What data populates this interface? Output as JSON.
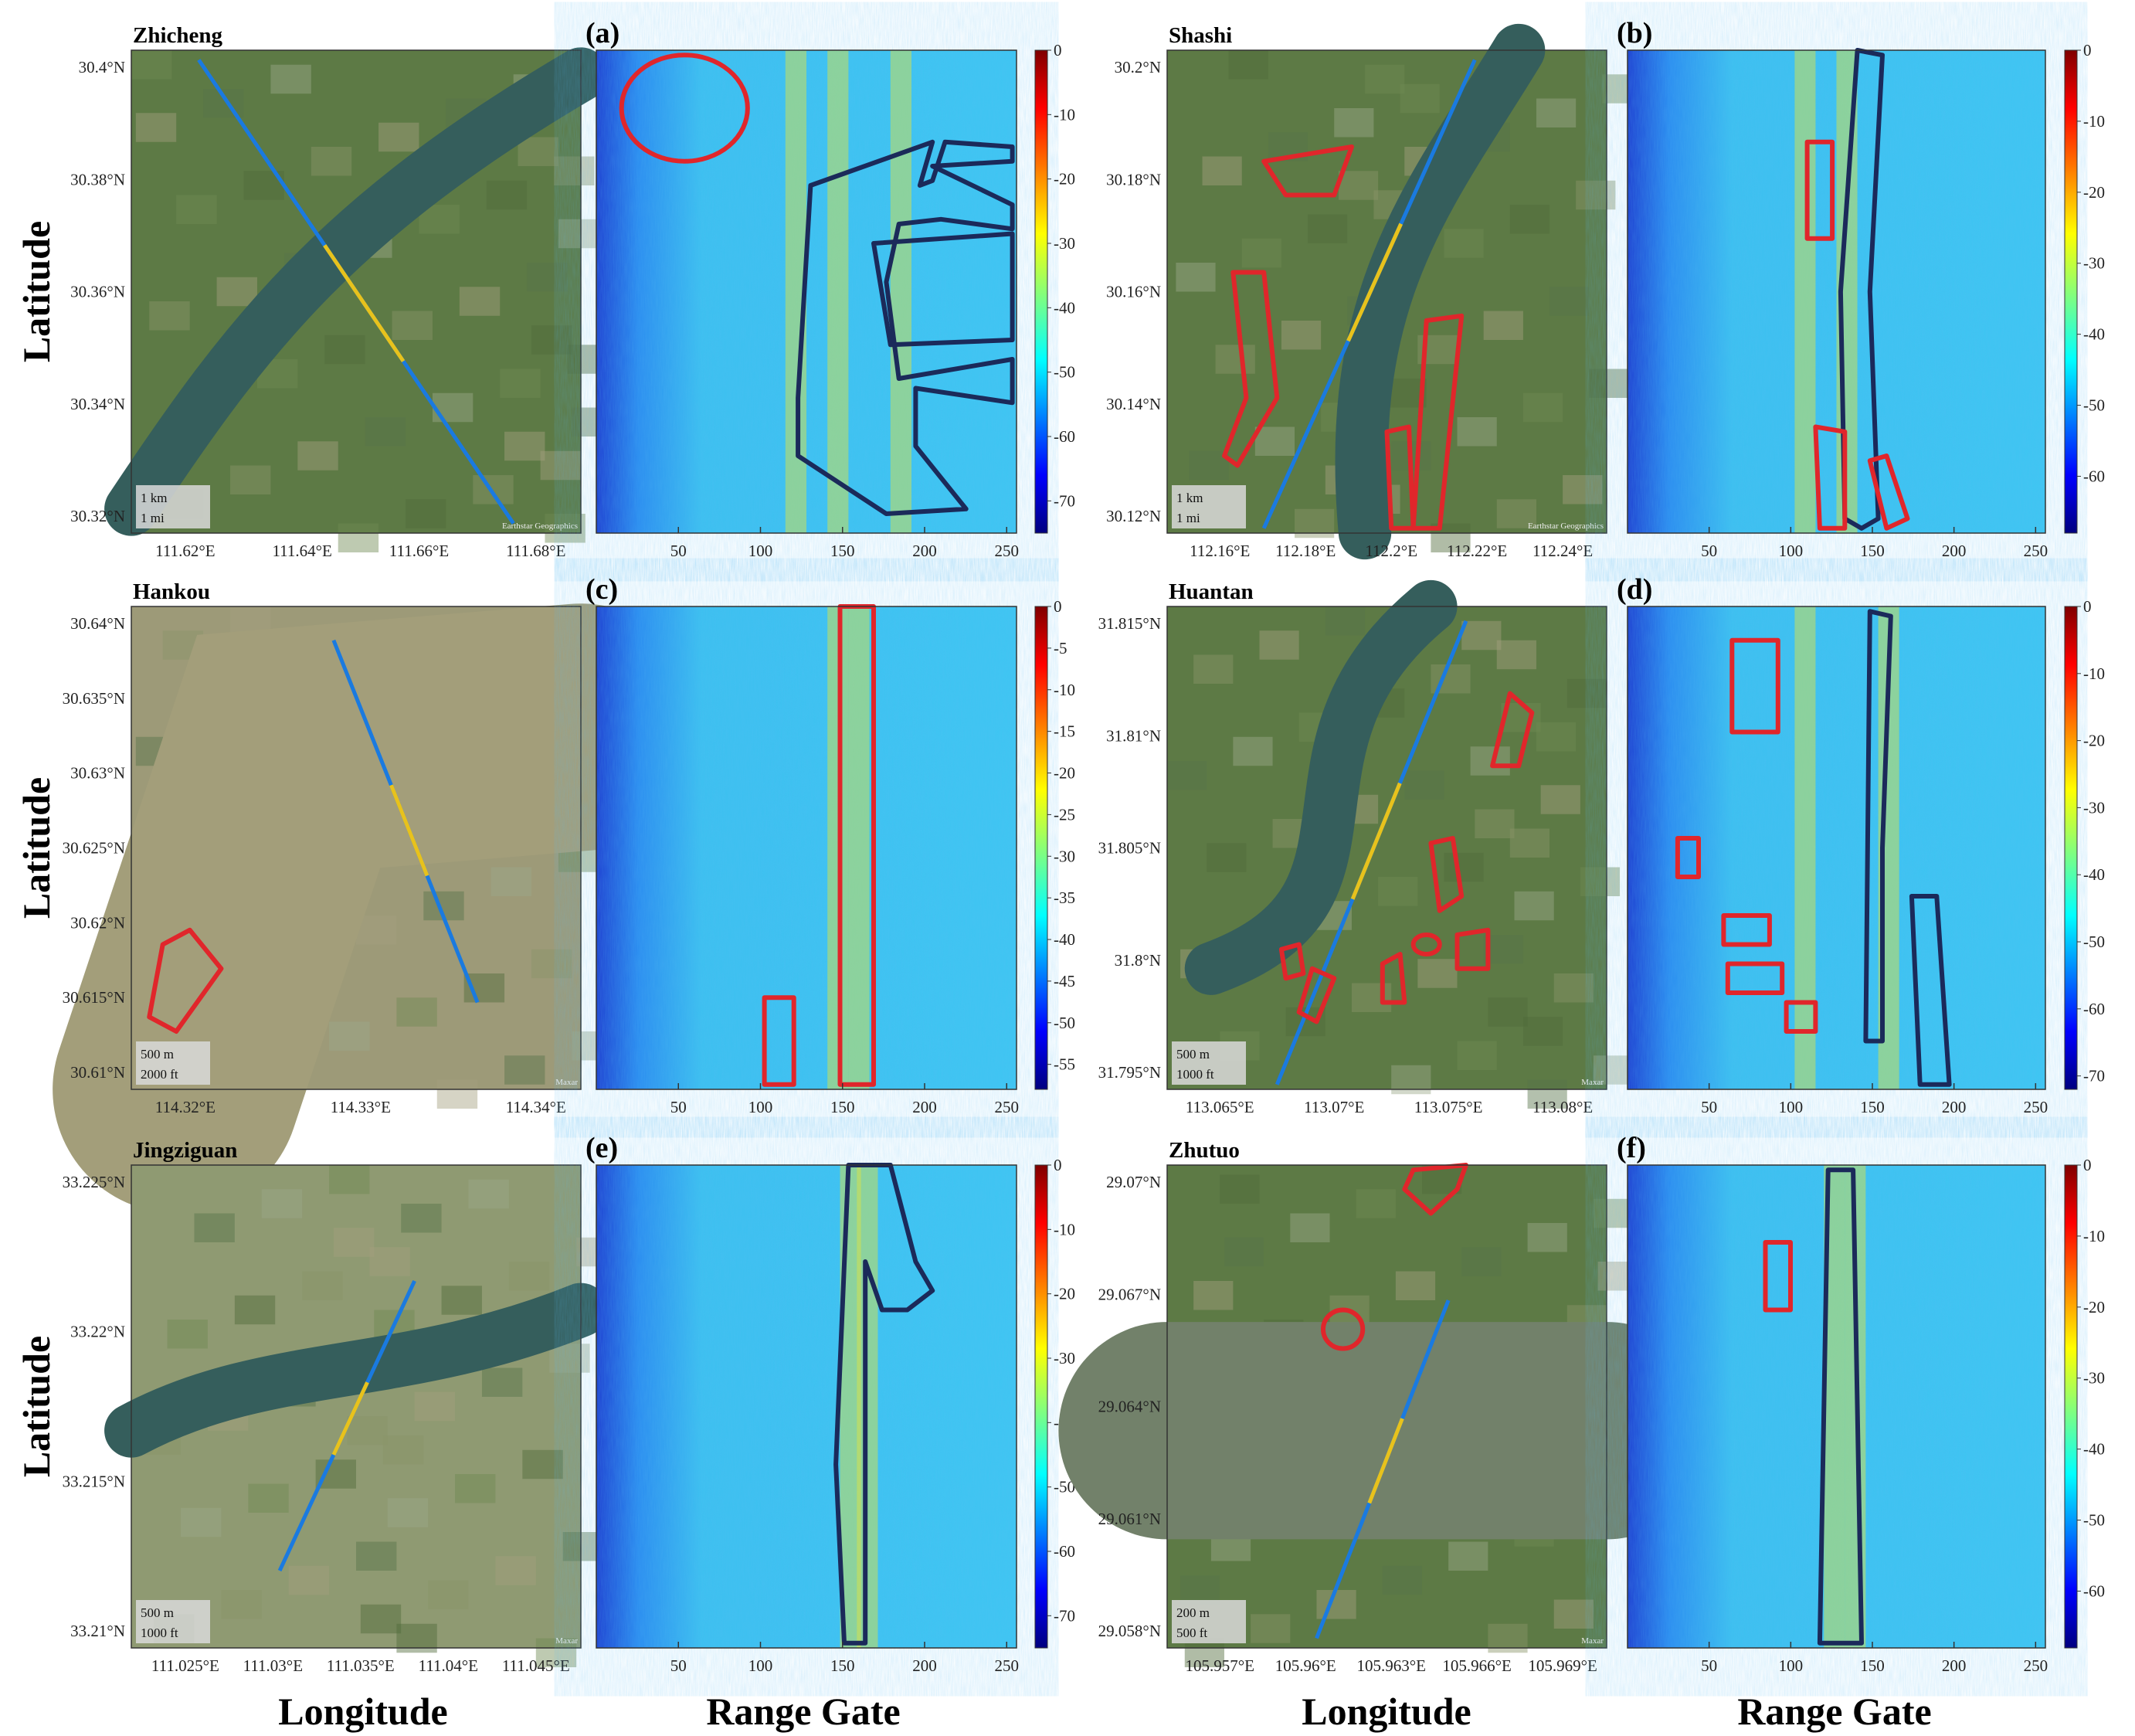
{
  "axis_labels": {
    "latitude": "Latitude",
    "longitude": "Longitude",
    "range_gate": "Range Gate"
  },
  "colors": {
    "red_outline": "#e0262b",
    "navy_outline": "#1b2a5a"
  },
  "rows": [
    {
      "left": {
        "letter": "(a)",
        "site": "Zhicheng",
        "lat_ticks": [
          "30.4°N",
          "30.38°N",
          "30.36°N",
          "30.34°N",
          "30.32°N"
        ],
        "lon_ticks": [
          "111.62°E",
          "111.64°E",
          "111.66°E",
          "111.68°E"
        ],
        "scale_km": "1 km",
        "scale_mi": "1 mi",
        "attribution": "Earthstar Geographics",
        "map_style": "green"
      },
      "right": {
        "letter": "(b)",
        "site": "Shashi",
        "lat_ticks": [
          "30.2°N",
          "30.18°N",
          "30.16°N",
          "30.14°N",
          "30.12°N"
        ],
        "lon_ticks": [
          "112.16°E",
          "112.18°E",
          "112.2°E",
          "112.22°E",
          "112.24°E"
        ],
        "scale_km": "1 km",
        "scale_mi": "1 mi",
        "attribution": "Earthstar Geographics",
        "map_style": "green"
      }
    },
    {
      "left": {
        "letter": "(c)",
        "site": "Hankou",
        "lat_ticks": [
          "30.64°N",
          "30.635°N",
          "30.63°N",
          "30.625°N",
          "30.62°N",
          "30.615°N",
          "30.61°N"
        ],
        "lon_ticks": [
          "114.32°E",
          "114.33°E",
          "114.34°E"
        ],
        "scale_km": "500 m",
        "scale_mi": "2000 ft",
        "attribution": "Maxar",
        "map_style": "river"
      },
      "right": {
        "letter": "(d)",
        "site": "Huantan",
        "lat_ticks": [
          "31.815°N",
          "31.81°N",
          "31.805°N",
          "31.8°N",
          "31.795°N"
        ],
        "lon_ticks": [
          "113.065°E",
          "113.07°E",
          "113.075°E",
          "113.08°E"
        ],
        "scale_km": "500 m",
        "scale_mi": "1000 ft",
        "attribution": "Maxar",
        "map_style": "green"
      }
    },
    {
      "left": {
        "letter": "(e)",
        "site": "Jingziguan",
        "lat_ticks": [
          "33.225°N",
          "33.22°N",
          "33.215°N",
          "33.21°N"
        ],
        "lon_ticks": [
          "111.025°E",
          "111.03°E",
          "111.035°E",
          "111.04°E",
          "111.045°E"
        ],
        "scale_km": "500 m",
        "scale_mi": "1000 ft",
        "attribution": "Maxar",
        "map_style": "dry"
      },
      "right": {
        "letter": "(f)",
        "site": "Zhutuo",
        "lat_ticks": [
          "29.07°N",
          "29.067°N",
          "29.064°N",
          "29.061°N",
          "29.058°N"
        ],
        "lon_ticks": [
          "105.957°E",
          "105.96°E",
          "105.963°E",
          "105.966°E",
          "105.969°E"
        ],
        "scale_km": "200 m",
        "scale_mi": "500 ft",
        "attribution": "Maxar",
        "map_style": "green"
      }
    }
  ],
  "range_gate_ticks": [
    "50",
    "100",
    "150",
    "200",
    "250"
  ],
  "chart_data": [
    {
      "type": "heatmap",
      "panel": "(a)",
      "xlabel": "Range Gate",
      "xticks": [
        50,
        100,
        150,
        200,
        250
      ],
      "xlim": [
        0,
        256
      ],
      "colorbar_ticks": [
        0,
        -10,
        -20,
        -30,
        -40,
        -50,
        -60,
        -70
      ],
      "colorbar_range": [
        -75,
        0
      ]
    },
    {
      "type": "heatmap",
      "panel": "(b)",
      "xlabel": "Range Gate",
      "xticks": [
        50,
        100,
        150,
        200,
        250
      ],
      "xlim": [
        0,
        256
      ],
      "colorbar_ticks": [
        0,
        -10,
        -20,
        -30,
        -40,
        -50,
        -60
      ],
      "colorbar_range": [
        -68,
        0
      ]
    },
    {
      "type": "heatmap",
      "panel": "(c)",
      "xlabel": "Range Gate",
      "xticks": [
        50,
        100,
        150,
        200,
        250
      ],
      "xlim": [
        0,
        256
      ],
      "colorbar_ticks": [
        0,
        -5,
        -10,
        -15,
        -20,
        -25,
        -30,
        -35,
        -40,
        -45,
        -50,
        -55
      ],
      "colorbar_range": [
        -58,
        0
      ]
    },
    {
      "type": "heatmap",
      "panel": "(d)",
      "xlabel": "Range Gate",
      "xticks": [
        50,
        100,
        150,
        200,
        250
      ],
      "xlim": [
        0,
        256
      ],
      "colorbar_ticks": [
        0,
        -10,
        -20,
        -30,
        -40,
        -50,
        -60,
        -70
      ],
      "colorbar_range": [
        -72,
        0
      ]
    },
    {
      "type": "heatmap",
      "panel": "(e)",
      "xlabel": "Range Gate",
      "xticks": [
        50,
        100,
        150,
        200,
        250
      ],
      "xlim": [
        0,
        256
      ],
      "colorbar_ticks": [
        0,
        -10,
        -20,
        -30,
        -40,
        -50,
        -60,
        -70
      ],
      "colorbar_range": [
        -75,
        0
      ]
    },
    {
      "type": "heatmap",
      "panel": "(f)",
      "xlabel": "Range Gate",
      "xticks": [
        50,
        100,
        150,
        200,
        250
      ],
      "xlim": [
        0,
        256
      ],
      "colorbar_ticks": [
        0,
        -10,
        -20,
        -30,
        -40,
        -50,
        -60
      ],
      "colorbar_range": [
        -68,
        0
      ]
    }
  ]
}
